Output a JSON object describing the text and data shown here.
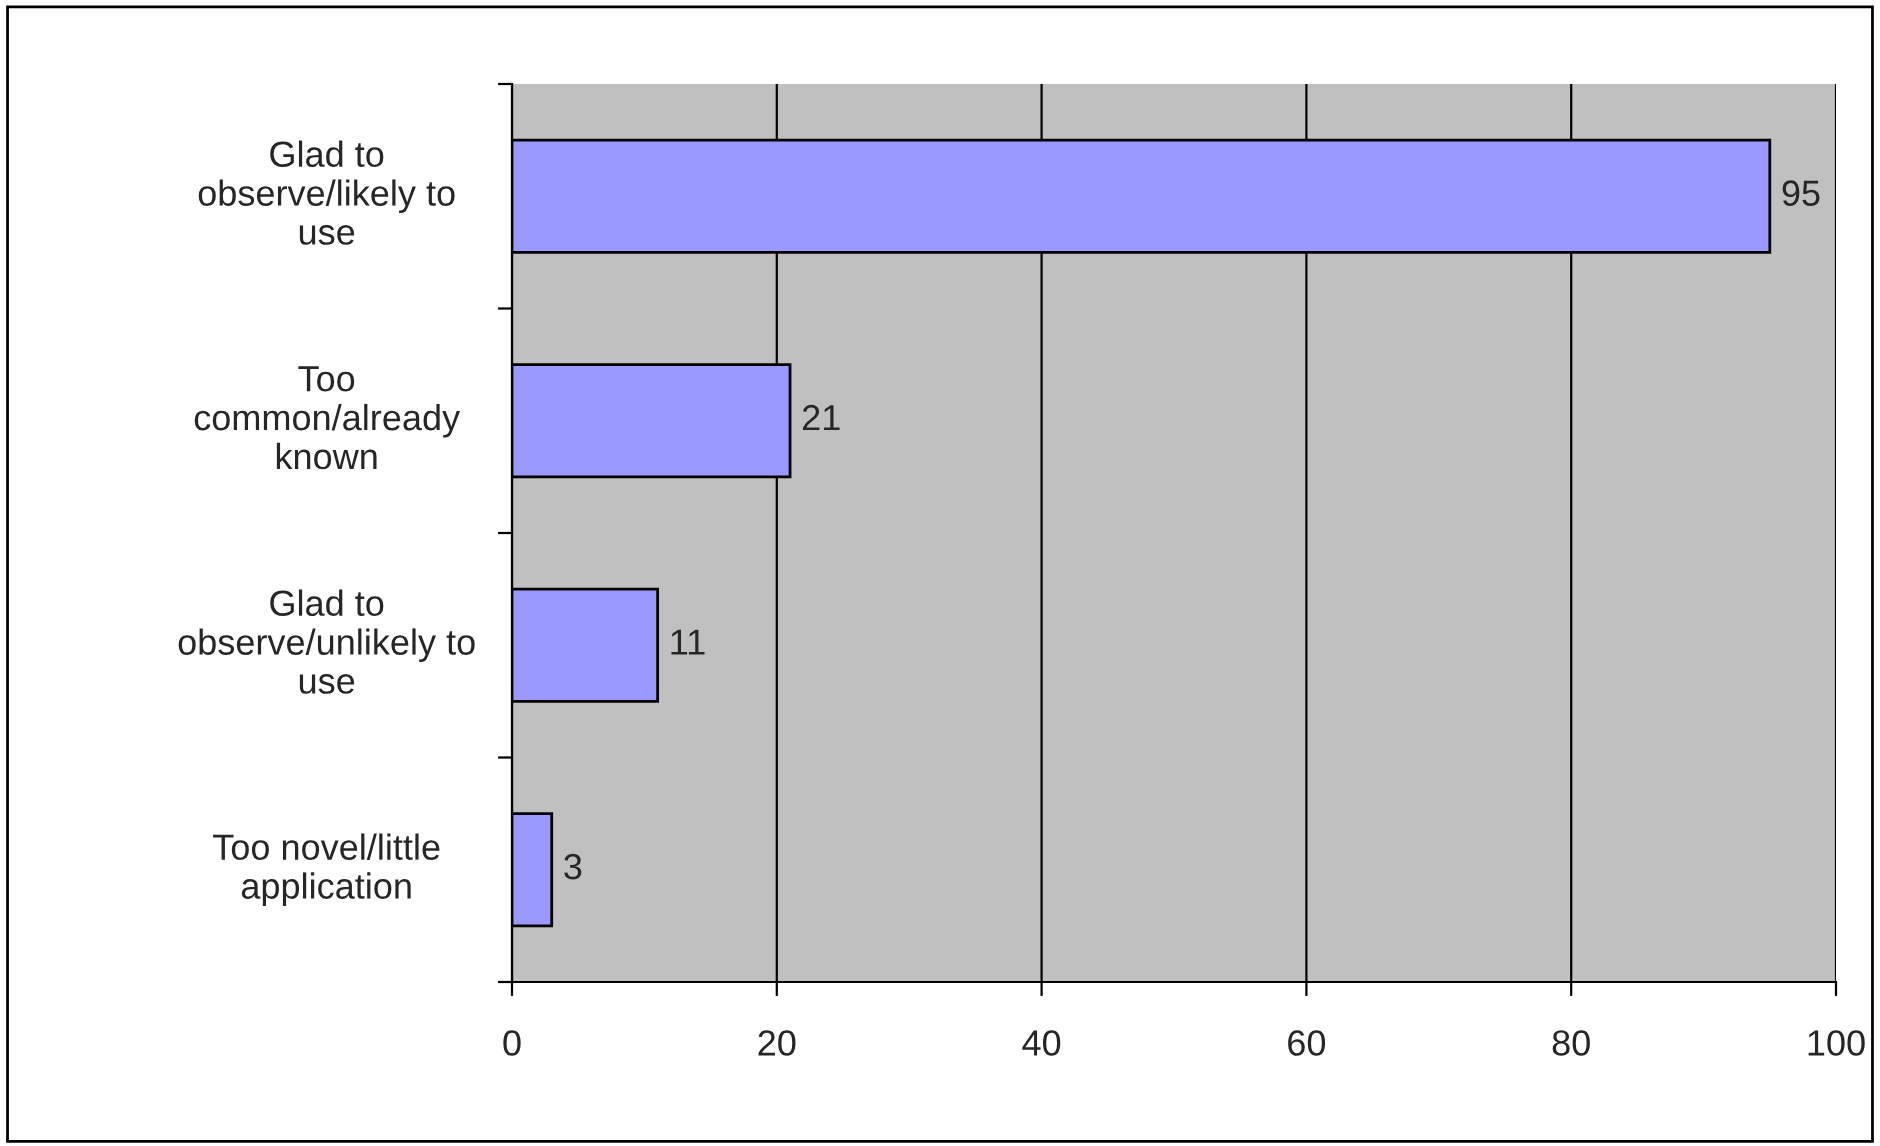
{
  "chart_data": {
    "type": "bar",
    "orientation": "horizontal",
    "categories": [
      "Glad to\nobserve/likely to\nuse",
      "Too\ncommon/already\nknown",
      "Glad to\nobserve/unlikely to\nuse",
      "Too novel/little\napplication"
    ],
    "values": [
      95,
      21,
      11,
      3
    ],
    "color": "#9999ff",
    "xlim": [
      0,
      100
    ],
    "xticks": [
      0,
      20,
      40,
      60,
      80,
      100
    ],
    "grid": "x",
    "data_labels": true,
    "legend": false
  }
}
